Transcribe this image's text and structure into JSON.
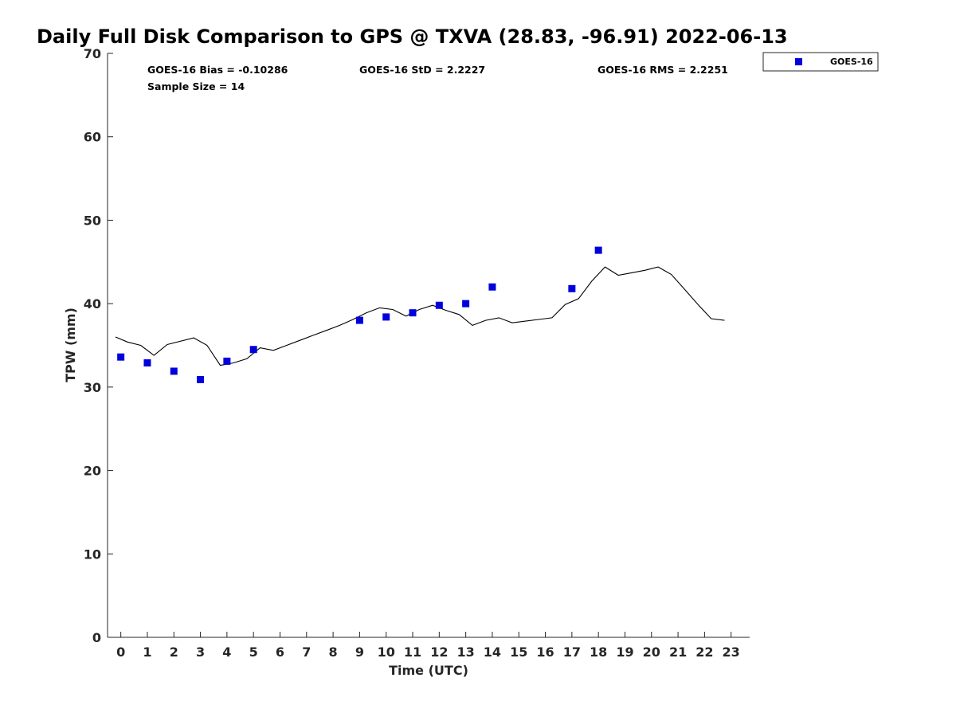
{
  "chart_data": {
    "type": "scatter",
    "title": "Daily Full Disk Comparison to GPS @ TXVA (28.83, -96.91) 2022-06-13",
    "xlabel": "Time (UTC)",
    "ylabel": "TPW (mm)",
    "xlim": [
      -0.5,
      23.7
    ],
    "ylim": [
      0,
      70
    ],
    "xticks": [
      0,
      1,
      2,
      3,
      4,
      5,
      6,
      7,
      8,
      9,
      10,
      11,
      12,
      13,
      14,
      15,
      16,
      17,
      18,
      19,
      20,
      21,
      22,
      23
    ],
    "yticks": [
      0,
      10,
      20,
      30,
      40,
      50,
      60,
      70
    ],
    "grid": false,
    "legend_position": "outside top-right",
    "stats": {
      "bias": "GOES-16 Bias = -0.10286",
      "std": "GOES-16 StD = 2.2227",
      "rms": "GOES-16 RMS = 2.2251",
      "sample": "Sample Size = 14"
    },
    "series": [
      {
        "name": "GOES-16",
        "kind": "scatter",
        "marker": "square",
        "color": "#0000dd",
        "x": [
          0,
          1,
          2,
          3,
          4,
          5,
          9,
          10,
          11,
          12,
          13,
          14,
          17,
          18
        ],
        "y": [
          33.6,
          32.9,
          31.9,
          30.9,
          33.1,
          34.5,
          38.0,
          38.4,
          38.9,
          39.8,
          40.0,
          42.0,
          41.8,
          46.4
        ]
      },
      {
        "kind": "line",
        "color": "#000000",
        "x": [
          -0.2,
          0.25,
          0.75,
          1.25,
          1.75,
          2.75,
          3.25,
          3.75,
          4.25,
          4.75,
          5.25,
          5.75,
          6.25,
          6.75,
          7.25,
          7.75,
          8.25,
          8.75,
          9.25,
          9.75,
          10.25,
          10.75,
          11.25,
          11.75,
          12.25,
          12.75,
          13.25,
          13.75,
          14.25,
          14.75,
          15.25,
          15.75,
          16.25,
          16.75,
          17.25,
          17.75,
          18.25,
          18.75,
          19.25,
          19.75,
          20.25,
          20.75,
          21.25,
          21.75,
          22.25,
          22.75
        ],
        "y": [
          36.0,
          35.4,
          35.0,
          33.8,
          35.1,
          35.9,
          35.0,
          32.6,
          32.9,
          33.4,
          34.7,
          34.4,
          35.0,
          35.6,
          36.2,
          36.8,
          37.4,
          38.1,
          38.9,
          39.5,
          39.3,
          38.5,
          39.3,
          39.8,
          39.2,
          38.7,
          37.4,
          38.0,
          38.3,
          37.7,
          37.9,
          38.1,
          38.3,
          39.9,
          40.6,
          42.7,
          44.4,
          43.4,
          43.7,
          44.0,
          44.4,
          43.5,
          41.7,
          39.9,
          38.2,
          38.0
        ]
      }
    ]
  }
}
